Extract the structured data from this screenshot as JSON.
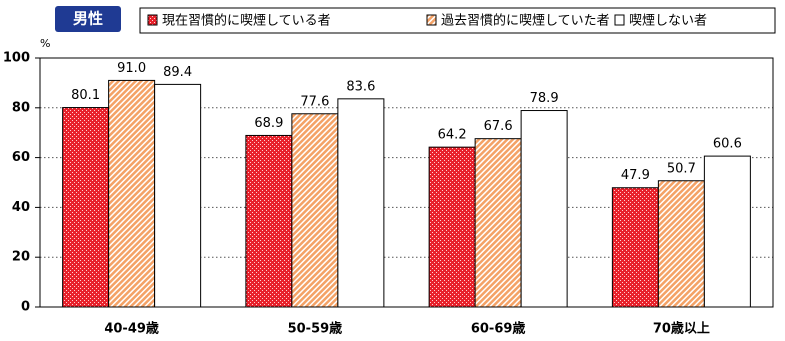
{
  "chart_data": {
    "type": "bar",
    "badge": "男性",
    "unit": "%",
    "categories": [
      "40-49歳",
      "50-59歳",
      "60-69歳",
      "70歳以上"
    ],
    "series": [
      {
        "name": "現在習慣的に喫煙している者",
        "color": "#e8212b",
        "pattern": "dots",
        "values": [
          80.1,
          68.9,
          64.2,
          47.9
        ],
        "value_labels": [
          "80.1",
          "68.9",
          "64.2",
          "47.9"
        ]
      },
      {
        "name": "過去習慣的に喫煙していた者",
        "color": "#f4a266",
        "pattern": "hatch",
        "values": [
          91.0,
          77.6,
          67.6,
          50.7
        ],
        "value_labels": [
          "91.0",
          "77.6",
          "67.6",
          "50.7"
        ]
      },
      {
        "name": "喫煙しない者",
        "color": "#ffffff",
        "pattern": "none",
        "values": [
          89.4,
          83.6,
          78.9,
          60.6
        ],
        "value_labels": [
          "89.4",
          "83.6",
          "78.9",
          "60.6"
        ]
      }
    ],
    "ylim": [
      0,
      100
    ],
    "yticks": [
      0,
      20,
      40,
      60,
      80,
      100
    ],
    "grid": true
  }
}
